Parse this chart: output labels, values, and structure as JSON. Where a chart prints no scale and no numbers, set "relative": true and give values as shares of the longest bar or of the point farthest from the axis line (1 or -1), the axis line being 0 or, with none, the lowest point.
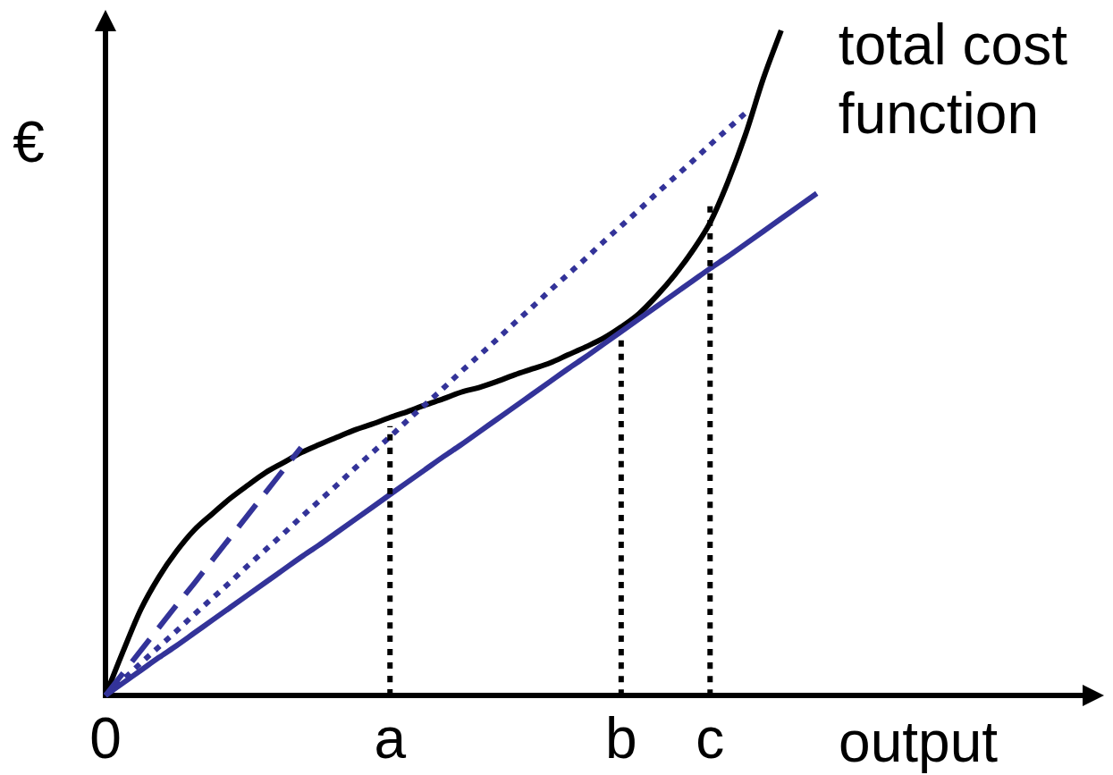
{
  "chart_data": {
    "type": "line",
    "relative": true,
    "xlabel": "output",
    "ylabel": "€",
    "marker": "none",
    "categories": [
      "0",
      null,
      null,
      null,
      null,
      null,
      null,
      null,
      null,
      null,
      null,
      null,
      null,
      null,
      null,
      null,
      "a",
      null,
      null,
      null,
      null,
      null,
      null,
      null,
      null,
      null,
      null,
      null,
      null,
      "b",
      null,
      null,
      null,
      null,
      "c",
      null,
      null,
      null,
      null,
      null,
      null,
      null,
      null,
      null,
      null,
      null,
      null,
      null,
      null,
      null,
      null,
      null,
      null,
      null,
      null,
      null
    ],
    "series": [
      {
        "name": "total cost function",
        "color": "#000000",
        "values": [
          0,
          0.067,
          0.13,
          0.178,
          0.217,
          0.249,
          0.273,
          0.296,
          0.316,
          0.335,
          0.35,
          0.365,
          0.377,
          0.388,
          0.399,
          0.408,
          0.418,
          0.427,
          0.437,
          0.446,
          0.456,
          0.463,
          0.472,
          0.482,
          0.491,
          0.5,
          0.512,
          0.524,
          0.537,
          0.554,
          0.574,
          0.601,
          0.632,
          0.668,
          0.711,
          0.772,
          0.844,
          0.928,
          1,
          null,
          null,
          null,
          null,
          null,
          null,
          null,
          null,
          null,
          null,
          null,
          null,
          null,
          null,
          null,
          null,
          null
        ]
      },
      {
        "color": "#333399",
        "values": [
          0,
          0.019,
          0.038,
          0.057,
          0.075,
          0.094,
          0.113,
          0.132,
          0.151,
          0.17,
          0.189,
          0.208,
          0.226,
          0.245,
          0.264,
          0.283,
          0.302,
          0.321,
          0.34,
          0.359,
          0.377,
          0.396,
          0.415,
          0.434,
          0.453,
          0.472,
          0.491,
          0.509,
          0.528,
          0.547,
          0.566,
          0.585,
          0.604,
          0.623,
          0.642,
          0.66,
          0.679,
          0.698,
          0.717,
          0.736,
          0.755,
          null,
          null,
          null,
          null,
          null,
          null,
          null,
          null,
          null,
          null,
          null,
          null,
          null,
          null,
          null
        ]
      },
      {
        "color": "#333399",
        "line_style": "dotted",
        "values": [
          0,
          0.024,
          0.049,
          0.073,
          0.097,
          0.122,
          0.146,
          0.17,
          0.195,
          0.219,
          0.243,
          0.268,
          0.292,
          0.316,
          0.341,
          0.365,
          0.389,
          0.414,
          0.438,
          0.462,
          0.487,
          0.511,
          0.535,
          0.56,
          0.584,
          0.609,
          0.633,
          0.657,
          0.682,
          0.706,
          0.73,
          0.755,
          0.779,
          0.803,
          0.828,
          0.852,
          0.876,
          null,
          null,
          null,
          null,
          null,
          null,
          null,
          null,
          null,
          null,
          null,
          null,
          null,
          null,
          null,
          null,
          null,
          null,
          null
        ]
      },
      {
        "color": "#333399",
        "line_style": "dashed",
        "values": [
          0,
          0.034,
          0.068,
          0.102,
          0.136,
          0.169,
          0.203,
          0.237,
          0.271,
          0.305,
          0.339,
          0.373,
          null,
          null,
          null,
          null,
          null,
          null,
          null,
          null,
          null,
          null,
          null,
          null,
          null,
          null,
          null,
          null,
          null,
          null,
          null,
          null,
          null,
          null,
          null,
          null,
          null,
          null,
          null,
          null,
          null,
          null,
          null,
          null,
          null,
          null,
          null,
          null,
          null,
          null,
          null,
          null,
          null,
          null,
          null,
          null
        ]
      },
      {
        "color": "#000000",
        "line_style": "dotted",
        "x": [
          "a",
          "a"
        ],
        "values": [
          0,
          0.405
        ]
      },
      {
        "color": "#000000",
        "line_style": "dotted",
        "x": [
          "b",
          "b"
        ],
        "values": [
          0,
          0.543
        ]
      },
      {
        "color": "#000000",
        "line_style": "dotted",
        "x": [
          "c",
          "c"
        ],
        "values": [
          0,
          0.746
        ]
      }
    ]
  }
}
